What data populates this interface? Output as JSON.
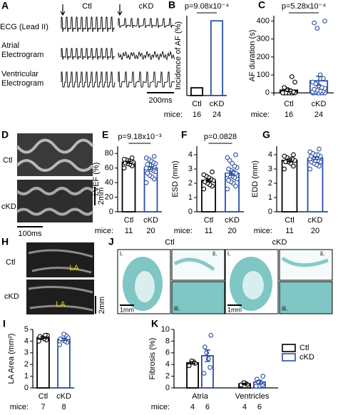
{
  "chart_data": [
    {
      "type": "bar",
      "panel": "B",
      "ylabel": "Incidence of AF (%)",
      "categories": [
        "Ctl",
        "cKD"
      ],
      "values": [
        6,
        58
      ],
      "colors": [
        "#000000",
        "#2b4ea2"
      ],
      "ylim": [
        0,
        62
      ],
      "annotation": "p=9.08x10⁻⁴",
      "n_label": "mice:",
      "n": [
        16,
        24
      ]
    },
    {
      "type": "bar",
      "panel": "C",
      "ylabel": "AF duration (s)",
      "categories": [
        "Ctl",
        "cKD"
      ],
      "values": [
        15,
        67
      ],
      "errors": [
        7,
        25
      ],
      "points": [
        [
          0,
          0,
          0,
          0,
          0,
          0,
          0,
          0,
          0,
          0,
          5,
          10,
          20,
          30,
          60,
          90
        ],
        [
          0,
          0,
          0,
          0,
          0,
          0,
          0,
          0,
          5,
          5,
          10,
          10,
          15,
          20,
          25,
          30,
          40,
          50,
          60,
          80,
          100,
          360,
          390,
          400
        ]
      ],
      "colors": [
        "#000000",
        "#2b4ea2"
      ],
      "ylim": [
        -15,
        430
      ],
      "yticks": [
        0,
        100,
        200,
        300,
        400
      ],
      "annotation": "p=5.28x10⁻⁴",
      "n_label": "mice:",
      "n": [
        16,
        24
      ]
    },
    {
      "type": "bar",
      "panel": "E",
      "ylabel": "LVEF (%)",
      "categories": [
        "Ctl",
        "cKD"
      ],
      "values": [
        68,
        60
      ],
      "errors": [
        1.3,
        2
      ],
      "points": [
        [
          60,
          63,
          65,
          66,
          67,
          68,
          69,
          70,
          71,
          72,
          74
        ],
        [
          40,
          45,
          48,
          50,
          53,
          55,
          57,
          58,
          60,
          60,
          62,
          63,
          64,
          65,
          66,
          68,
          70,
          72,
          74,
          76
        ]
      ],
      "colors": [
        "#000000",
        "#2b4ea2"
      ],
      "ylim": [
        0,
        90
      ],
      "yticks": [
        0,
        20,
        40,
        60,
        80
      ],
      "annotation": "p=9.18x10⁻³",
      "n_label": "mice:",
      "n": [
        11,
        20
      ]
    },
    {
      "type": "bar",
      "panel": "F",
      "ylabel": "ESD (mm)",
      "categories": [
        "Ctl",
        "cKD"
      ],
      "values": [
        2.2,
        2.7
      ],
      "errors": [
        0.1,
        0.15
      ],
      "points": [
        [
          1.6,
          1.8,
          1.9,
          2.0,
          2.1,
          2.2,
          2.3,
          2.4,
          2.5,
          2.6,
          2.8
        ],
        [
          1.6,
          1.8,
          2.0,
          2.1,
          2.2,
          2.3,
          2.4,
          2.5,
          2.5,
          2.6,
          2.7,
          2.8,
          2.9,
          3.0,
          3.1,
          3.2,
          3.4,
          3.6,
          3.8,
          4.0
        ]
      ],
      "colors": [
        "#000000",
        "#2b4ea2"
      ],
      "ylim": [
        0,
        4.6
      ],
      "yticks": [
        0,
        1,
        2,
        3,
        4
      ],
      "annotation": "p=0.0828",
      "n_label": "mice:",
      "n": [
        11,
        20
      ]
    },
    {
      "type": "bar",
      "panel": "G",
      "ylabel": "EDD (mm)",
      "categories": [
        "Ctl",
        "cKD"
      ],
      "values": [
        3.6,
        3.75
      ],
      "errors": [
        0.1,
        0.08
      ],
      "points": [
        [
          3.0,
          3.2,
          3.4,
          3.5,
          3.5,
          3.6,
          3.7,
          3.7,
          3.8,
          3.9,
          4.0
        ],
        [
          3.0,
          3.2,
          3.3,
          3.4,
          3.5,
          3.5,
          3.6,
          3.6,
          3.7,
          3.7,
          3.8,
          3.8,
          3.8,
          3.9,
          3.9,
          4.0,
          4.0,
          4.1,
          4.2,
          4.4
        ]
      ],
      "colors": [
        "#000000",
        "#2b4ea2"
      ],
      "ylim": [
        0,
        4.6
      ],
      "yticks": [
        0,
        1,
        2,
        3,
        4
      ],
      "n_label": "mice:",
      "n": [
        11,
        20
      ]
    },
    {
      "type": "bar",
      "panel": "I",
      "ylabel": "LA Area (mm²)",
      "categories": [
        "Ctl",
        "cKD"
      ],
      "values": [
        4.3,
        4.15
      ],
      "errors": [
        0.07,
        0.1
      ],
      "points": [
        [
          4.0,
          4.1,
          4.2,
          4.3,
          4.4,
          4.5,
          4.5
        ],
        [
          3.7,
          3.9,
          4.0,
          4.1,
          4.2,
          4.3,
          4.5,
          4.6
        ]
      ],
      "colors": [
        "#000000",
        "#2b4ea2"
      ],
      "ylim": [
        0,
        5
      ],
      "yticks": [
        0,
        1,
        2,
        3,
        4,
        5
      ],
      "n_label": "mice:",
      "n": [
        7,
        8
      ]
    },
    {
      "type": "grouped-bar",
      "panel": "K",
      "ylabel": "Fibrosis (%)",
      "categories": [
        "Atria",
        "Ventricles"
      ],
      "series": [
        {
          "name": "Ctl",
          "color": "#000000",
          "values": [
            4.3,
            0.7
          ],
          "errors": [
            0.2,
            0.1
          ],
          "points": [
            [
              3.8,
              4.2,
              4.5,
              4.6
            ],
            [
              0.5,
              0.6,
              0.8,
              0.9
            ]
          ],
          "n": [
            4,
            4
          ]
        },
        {
          "name": "cKD",
          "color": "#2b4ea2",
          "values": [
            5.5,
            1.0
          ],
          "errors": [
            1,
            0.3
          ],
          "points": [
            [
              2.5,
              3.5,
              5,
              6,
              7,
              9
            ],
            [
              0.3,
              0.5,
              0.8,
              1.0,
              1.5,
              2.0
            ]
          ],
          "n": [
            6,
            6
          ]
        }
      ],
      "ylim": [
        0,
        10
      ],
      "yticks": [
        0,
        2,
        4,
        6,
        8,
        10
      ],
      "n_label": "mice:",
      "legend": "right"
    }
  ],
  "figure": {
    "A": {
      "letter": "A",
      "ctl": "Ctl",
      "ckd": "cKD",
      "ecg": "ECG (Lead II)",
      "atrial": [
        "Atrial",
        "Electrogram"
      ],
      "ventricular": [
        "Ventricular",
        "Electrogram"
      ],
      "scale": "200ms"
    },
    "D": {
      "letter": "D",
      "ctl": "Ctl",
      "ckd": "cKD",
      "scale_y": "2mm",
      "scale_x": "100ms"
    },
    "H": {
      "letter": "H",
      "ctl": "Ctl",
      "ckd": "cKD",
      "la": [
        "LA",
        "LA"
      ],
      "scale": "2mm"
    },
    "J": {
      "letter": "J",
      "ctl": "Ctl",
      "ckd": "cKD",
      "insets": [
        "i.",
        "ii.",
        "iii.",
        "i.",
        "ii.",
        "iii."
      ],
      "scale": [
        "1mm",
        "1mm"
      ]
    }
  }
}
